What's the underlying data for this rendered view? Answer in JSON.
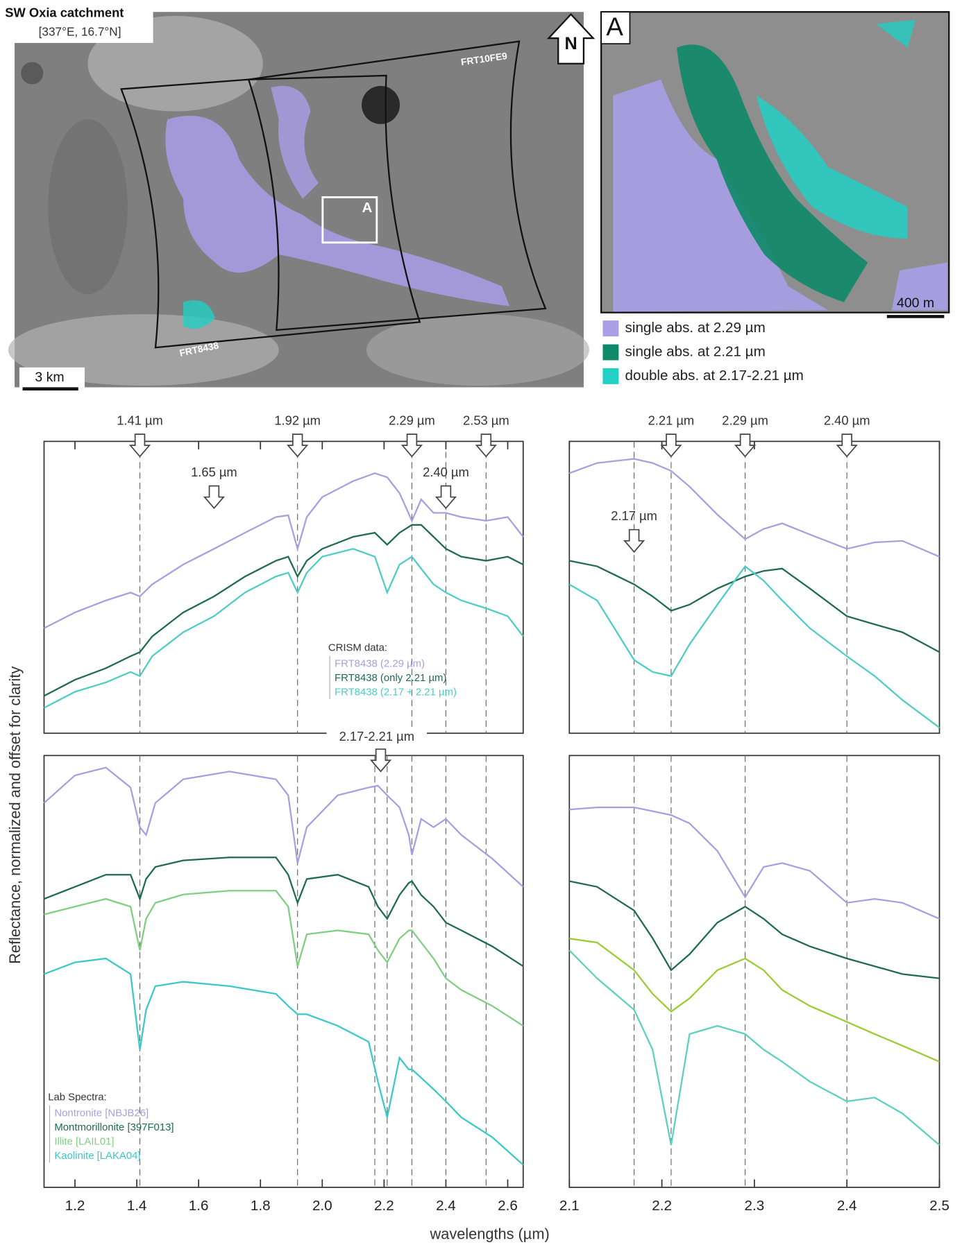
{
  "map": {
    "title": "SW Oxia catchment",
    "coordinates": "[337°E, 16.7°N]",
    "north": "N",
    "box_label": "A",
    "inset_label": "A",
    "footprints": [
      "FRT10FE9",
      "FRT8438"
    ],
    "scale_bars": [
      "3 km",
      "400 m"
    ],
    "legend": [
      {
        "label": "single abs. at 2.29 µm",
        "color": "#a99ee8"
      },
      {
        "label": "single abs. at 2.21 µm",
        "color": "#0e8a68"
      },
      {
        "label": "double abs. at 2.17-2.21 µm",
        "color": "#22d0c4"
      }
    ]
  },
  "axis_labels": {
    "x": "wavelengths (µm)",
    "y": "Reflectance, normalized and offset for clarity"
  },
  "chart_data": [
    {
      "type": "line",
      "legend_title": "CRISM data:",
      "xlim": [
        1.1,
        2.65
      ],
      "xticks": [
        1.2,
        1.4,
        1.6,
        1.8,
        2.0,
        2.2,
        2.4,
        2.6
      ],
      "ylim": [
        0,
        1
      ],
      "x": [
        1.1,
        1.2,
        1.3,
        1.38,
        1.41,
        1.45,
        1.55,
        1.65,
        1.75,
        1.85,
        1.89,
        1.92,
        1.95,
        2.0,
        2.1,
        2.17,
        2.21,
        2.25,
        2.29,
        2.32,
        2.36,
        2.4,
        2.45,
        2.53,
        2.6,
        2.65
      ],
      "series": [
        {
          "name": "FRT8438 (2.29 µm)",
          "color": "#a99ee0",
          "values": [
            0.36,
            0.414,
            0.455,
            0.482,
            0.469,
            0.51,
            0.578,
            0.632,
            0.687,
            0.741,
            0.747,
            0.632,
            0.741,
            0.809,
            0.864,
            0.891,
            0.877,
            0.823,
            0.728,
            0.801,
            0.755,
            0.755,
            0.741,
            0.728,
            0.741,
            0.673
          ]
        },
        {
          "name": "FRT8438 (only 2.21 µm)",
          "color": "#1f6b50",
          "values": [
            0.128,
            0.183,
            0.223,
            0.264,
            0.278,
            0.332,
            0.414,
            0.469,
            0.537,
            0.591,
            0.605,
            0.537,
            0.591,
            0.632,
            0.673,
            0.687,
            0.646,
            0.687,
            0.714,
            0.714,
            0.673,
            0.632,
            0.605,
            0.591,
            0.605,
            0.578
          ]
        },
        {
          "name": "FRT8438 (2.17 + 2.21 µm)",
          "color": "#4ecdc4",
          "values": [
            0.087,
            0.142,
            0.174,
            0.21,
            0.196,
            0.264,
            0.346,
            0.401,
            0.482,
            0.537,
            0.55,
            0.482,
            0.55,
            0.605,
            0.632,
            0.605,
            0.482,
            0.578,
            0.605,
            0.564,
            0.51,
            0.482,
            0.455,
            0.428,
            0.401,
            0.332
          ]
        }
      ],
      "markers": [
        {
          "value": 1.41,
          "label": "1.41 µm"
        },
        {
          "value": 1.65,
          "label": "1.65 µm"
        },
        {
          "value": 1.92,
          "label": "1.92 µm"
        },
        {
          "value": 2.29,
          "label": "2.29 µm"
        },
        {
          "value": 2.4,
          "label": "2.40 µm"
        },
        {
          "value": 2.53,
          "label": "2.53 µm"
        }
      ],
      "reference_lines": [
        1.41,
        1.92,
        2.29,
        2.4,
        2.53
      ]
    },
    {
      "type": "line",
      "legend_title": "Lab Spectra:",
      "annotation": "2.17-2.21 µm",
      "xlim": [
        1.1,
        2.65
      ],
      "xticks": [
        1.2,
        1.4,
        1.6,
        1.8,
        {
          "value": 2.0,
          "label": "2.0"
        },
        2.2,
        2.4,
        2.6
      ],
      "ylim": [
        0,
        1
      ],
      "x": [
        1.1,
        1.2,
        1.3,
        1.38,
        1.41,
        1.43,
        1.46,
        1.55,
        1.7,
        1.85,
        1.89,
        1.92,
        1.95,
        2.05,
        2.15,
        2.18,
        2.21,
        2.25,
        2.28,
        2.29,
        2.32,
        2.36,
        2.4,
        2.45,
        2.55,
        2.65
      ],
      "series": [
        {
          "name": "Nontronite [NBJB26]",
          "color": "#a99ee0",
          "values": [
            0.89,
            0.954,
            0.972,
            0.926,
            0.834,
            0.816,
            0.89,
            0.945,
            0.963,
            0.945,
            0.908,
            0.751,
            0.834,
            0.908,
            0.926,
            0.93,
            0.908,
            0.88,
            0.816,
            0.77,
            0.853,
            0.834,
            0.853,
            0.816,
            0.761,
            0.696
          ]
        },
        {
          "name": "Montmorillonite [397F013]",
          "color": "#1f6b50",
          "values": [
            0.668,
            0.696,
            0.724,
            0.724,
            0.668,
            0.714,
            0.742,
            0.757,
            0.764,
            0.764,
            0.724,
            0.659,
            0.714,
            0.724,
            0.696,
            0.65,
            0.622,
            0.677,
            0.705,
            0.709,
            0.677,
            0.65,
            0.613,
            0.595,
            0.558,
            0.512
          ]
        },
        {
          "name": "Illite [LAIL01]",
          "color": "#7fcf80",
          "values": [
            0.632,
            0.65,
            0.668,
            0.65,
            0.549,
            0.622,
            0.659,
            0.678,
            0.687,
            0.687,
            0.65,
            0.512,
            0.586,
            0.595,
            0.586,
            0.549,
            0.521,
            0.576,
            0.595,
            0.595,
            0.567,
            0.53,
            0.484,
            0.457,
            0.42,
            0.374
          ]
        },
        {
          "name": "Kaolinite [LAKA04]",
          "color": "#3cc8c8",
          "values": [
            0.494,
            0.521,
            0.53,
            0.494,
            0.319,
            0.411,
            0.466,
            0.476,
            0.466,
            0.448,
            0.42,
            0.401,
            0.401,
            0.374,
            0.337,
            0.245,
            0.162,
            0.3,
            0.273,
            0.273,
            0.254,
            0.227,
            0.199,
            0.162,
            0.116,
            0.052
          ]
        }
      ],
      "reference_lines": [
        1.41,
        1.92,
        2.17,
        2.21,
        2.29,
        2.4,
        2.53
      ]
    },
    {
      "type": "line",
      "xlim": [
        2.1,
        2.5
      ],
      "xticks": [
        2.1,
        2.2,
        2.3,
        2.4,
        2.5
      ],
      "ylim": [
        0,
        1
      ],
      "x": [
        2.1,
        2.13,
        2.17,
        2.19,
        2.21,
        2.23,
        2.26,
        2.29,
        2.31,
        2.33,
        2.36,
        2.4,
        2.43,
        2.46,
        2.5
      ],
      "series": [
        {
          "color": "#a99ee0",
          "values": [
            0.891,
            0.926,
            0.94,
            0.926,
            0.899,
            0.845,
            0.749,
            0.665,
            0.7,
            0.719,
            0.681,
            0.632,
            0.654,
            0.659,
            0.605
          ]
        },
        {
          "color": "#1f6b50",
          "values": [
            0.591,
            0.572,
            0.51,
            0.469,
            0.42,
            0.441,
            0.496,
            0.537,
            0.556,
            0.564,
            0.496,
            0.401,
            0.373,
            0.346,
            0.278
          ]
        },
        {
          "color": "#4ecdc4",
          "values": [
            0.51,
            0.455,
            0.251,
            0.21,
            0.196,
            0.305,
            0.441,
            0.572,
            0.523,
            0.455,
            0.36,
            0.264,
            0.196,
            0.114,
            0.019
          ]
        }
      ],
      "markers": [
        {
          "value": 2.17,
          "label": "2.17 µm"
        },
        {
          "value": 2.21,
          "label": "2.21 µm"
        },
        {
          "value": 2.29,
          "label": "2.29 µm"
        },
        {
          "value": 2.4,
          "label": "2.40 µm"
        }
      ],
      "reference_lines": [
        2.17,
        2.21,
        2.29,
        2.4
      ]
    },
    {
      "type": "line",
      "xlim": [
        2.1,
        2.5
      ],
      "xticks": [
        2.1,
        2.2,
        2.3,
        2.4,
        2.5
      ],
      "ylim": [
        0,
        1
      ],
      "x": [
        2.1,
        2.13,
        2.17,
        2.19,
        2.21,
        2.23,
        2.26,
        2.29,
        2.31,
        2.33,
        2.36,
        2.4,
        2.43,
        2.46,
        2.5
      ],
      "series": [
        {
          "color": "#a99ee0",
          "values": [
            0.875,
            0.88,
            0.88,
            0.871,
            0.862,
            0.843,
            0.779,
            0.672,
            0.742,
            0.751,
            0.733,
            0.659,
            0.668,
            0.659,
            0.622
          ]
        },
        {
          "color": "#1f6b50",
          "values": [
            0.709,
            0.696,
            0.641,
            0.577,
            0.503,
            0.54,
            0.613,
            0.65,
            0.622,
            0.586,
            0.558,
            0.53,
            0.512,
            0.494,
            0.484
          ]
        },
        {
          "color": "#9acd32",
          "values": [
            0.576,
            0.567,
            0.503,
            0.448,
            0.407,
            0.438,
            0.503,
            0.53,
            0.503,
            0.457,
            0.42,
            0.383,
            0.355,
            0.328,
            0.291
          ]
        },
        {
          "color": "#5fcfc0",
          "values": [
            0.549,
            0.484,
            0.411,
            0.319,
            0.098,
            0.355,
            0.374,
            0.355,
            0.319,
            0.291,
            0.245,
            0.199,
            0.208,
            0.171,
            0.098
          ]
        }
      ],
      "reference_lines": [
        2.17,
        2.21,
        2.29,
        2.4
      ]
    }
  ]
}
